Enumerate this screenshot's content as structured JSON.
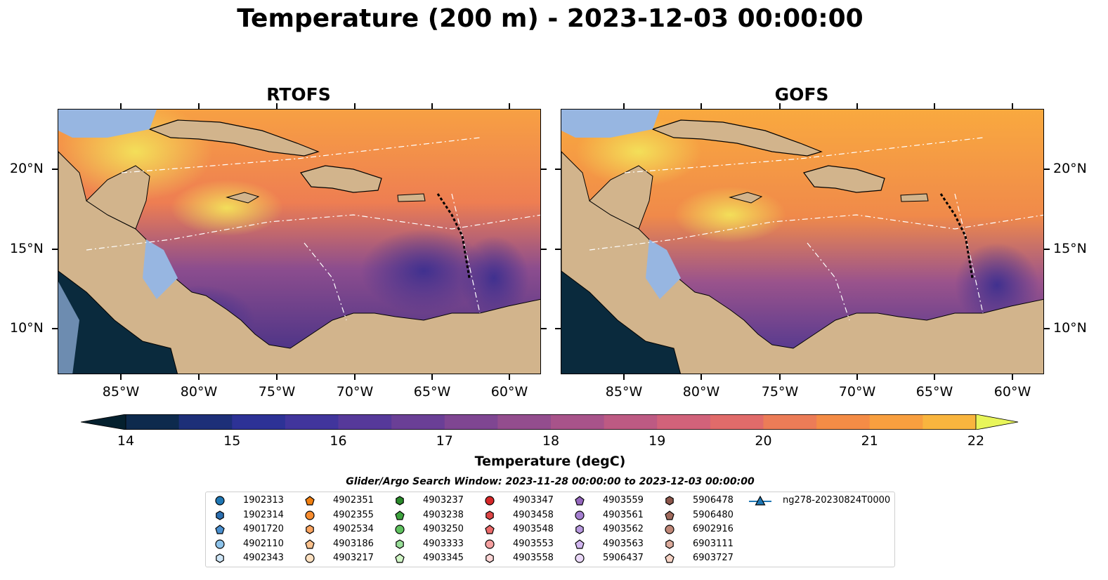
{
  "title": "Temperature (200 m) - 2023-12-03 00:00:00",
  "panels": [
    {
      "title": "RTOFS"
    },
    {
      "title": "GOFS"
    }
  ],
  "axes": {
    "lat_labels": [
      "20°N",
      "15°N",
      "10°N"
    ],
    "lon_labels": [
      "85°W",
      "80°W",
      "75°W",
      "70°W",
      "65°W",
      "60°W"
    ]
  },
  "colorbar": {
    "label": "Temperature (degC)",
    "ticks": [
      "14",
      "15",
      "16",
      "17",
      "18",
      "19",
      "20",
      "21",
      "22"
    ],
    "range": [
      14,
      22
    ],
    "step": 0.5,
    "colormap": "thermal",
    "extend": "both"
  },
  "legend": {
    "title": "Glider/Argo Search Window: 2023-11-28 00:00:00 to 2023-12-03 00:00:00",
    "items": [
      {
        "label": "1902313",
        "marker": "circle",
        "color": "#1f77b4"
      },
      {
        "label": "1902314",
        "marker": "hexagon",
        "color": "#2c6fb0"
      },
      {
        "label": "4901720",
        "marker": "pentagon",
        "color": "#4a8fcf"
      },
      {
        "label": "4902110",
        "marker": "circle",
        "color": "#8ec3ea"
      },
      {
        "label": "4902343",
        "marker": "hexagon",
        "color": "#cfe6f7"
      },
      {
        "label": "4902351",
        "marker": "pentagon",
        "color": "#f07f10"
      },
      {
        "label": "4902355",
        "marker": "circle",
        "color": "#f98d2f"
      },
      {
        "label": "4902534",
        "marker": "hexagon",
        "color": "#fca560"
      },
      {
        "label": "4903186",
        "marker": "pentagon",
        "color": "#fcc28e"
      },
      {
        "label": "4903217",
        "marker": "circle",
        "color": "#fde0c0"
      },
      {
        "label": "4903237",
        "marker": "hexagon",
        "color": "#2a8a2a"
      },
      {
        "label": "4903238",
        "marker": "pentagon",
        "color": "#3ea33e"
      },
      {
        "label": "4903250",
        "marker": "circle",
        "color": "#5fc25f"
      },
      {
        "label": "4903333",
        "marker": "hexagon",
        "color": "#98de98"
      },
      {
        "label": "4903345",
        "marker": "pentagon",
        "color": "#d0f5c5"
      },
      {
        "label": "4903347",
        "marker": "circle",
        "color": "#d62728"
      },
      {
        "label": "4903458",
        "marker": "hexagon",
        "color": "#de4546"
      },
      {
        "label": "4903548",
        "marker": "pentagon",
        "color": "#eb6a6a"
      },
      {
        "label": "4903553",
        "marker": "circle",
        "color": "#f5a0a0"
      },
      {
        "label": "4903558",
        "marker": "hexagon",
        "color": "#fdd6d6"
      },
      {
        "label": "4903559",
        "marker": "pentagon",
        "color": "#9467bd"
      },
      {
        "label": "4903561",
        "marker": "circle",
        "color": "#a57fd0"
      },
      {
        "label": "4903562",
        "marker": "hexagon",
        "color": "#b99ae0"
      },
      {
        "label": "4903563",
        "marker": "pentagon",
        "color": "#d2b7f0"
      },
      {
        "label": "5906437",
        "marker": "circle",
        "color": "#ead8f8"
      },
      {
        "label": "5906478",
        "marker": "hexagon",
        "color": "#8c564b"
      },
      {
        "label": "5906480",
        "marker": "pentagon",
        "color": "#a06a5c"
      },
      {
        "label": "6902916",
        "marker": "circle",
        "color": "#c08878"
      },
      {
        "label": "6903111",
        "marker": "hexagon",
        "color": "#dcab9c"
      },
      {
        "label": "6903727",
        "marker": "pentagon",
        "color": "#f5d2c4"
      },
      {
        "label": "ng278-20230824T0000",
        "marker": "triangle-line",
        "color": "#1f77b4"
      }
    ]
  },
  "colors": {
    "land": "#d2b48c",
    "shelf": "#97b6e1",
    "glider": "#1f77b4"
  }
}
